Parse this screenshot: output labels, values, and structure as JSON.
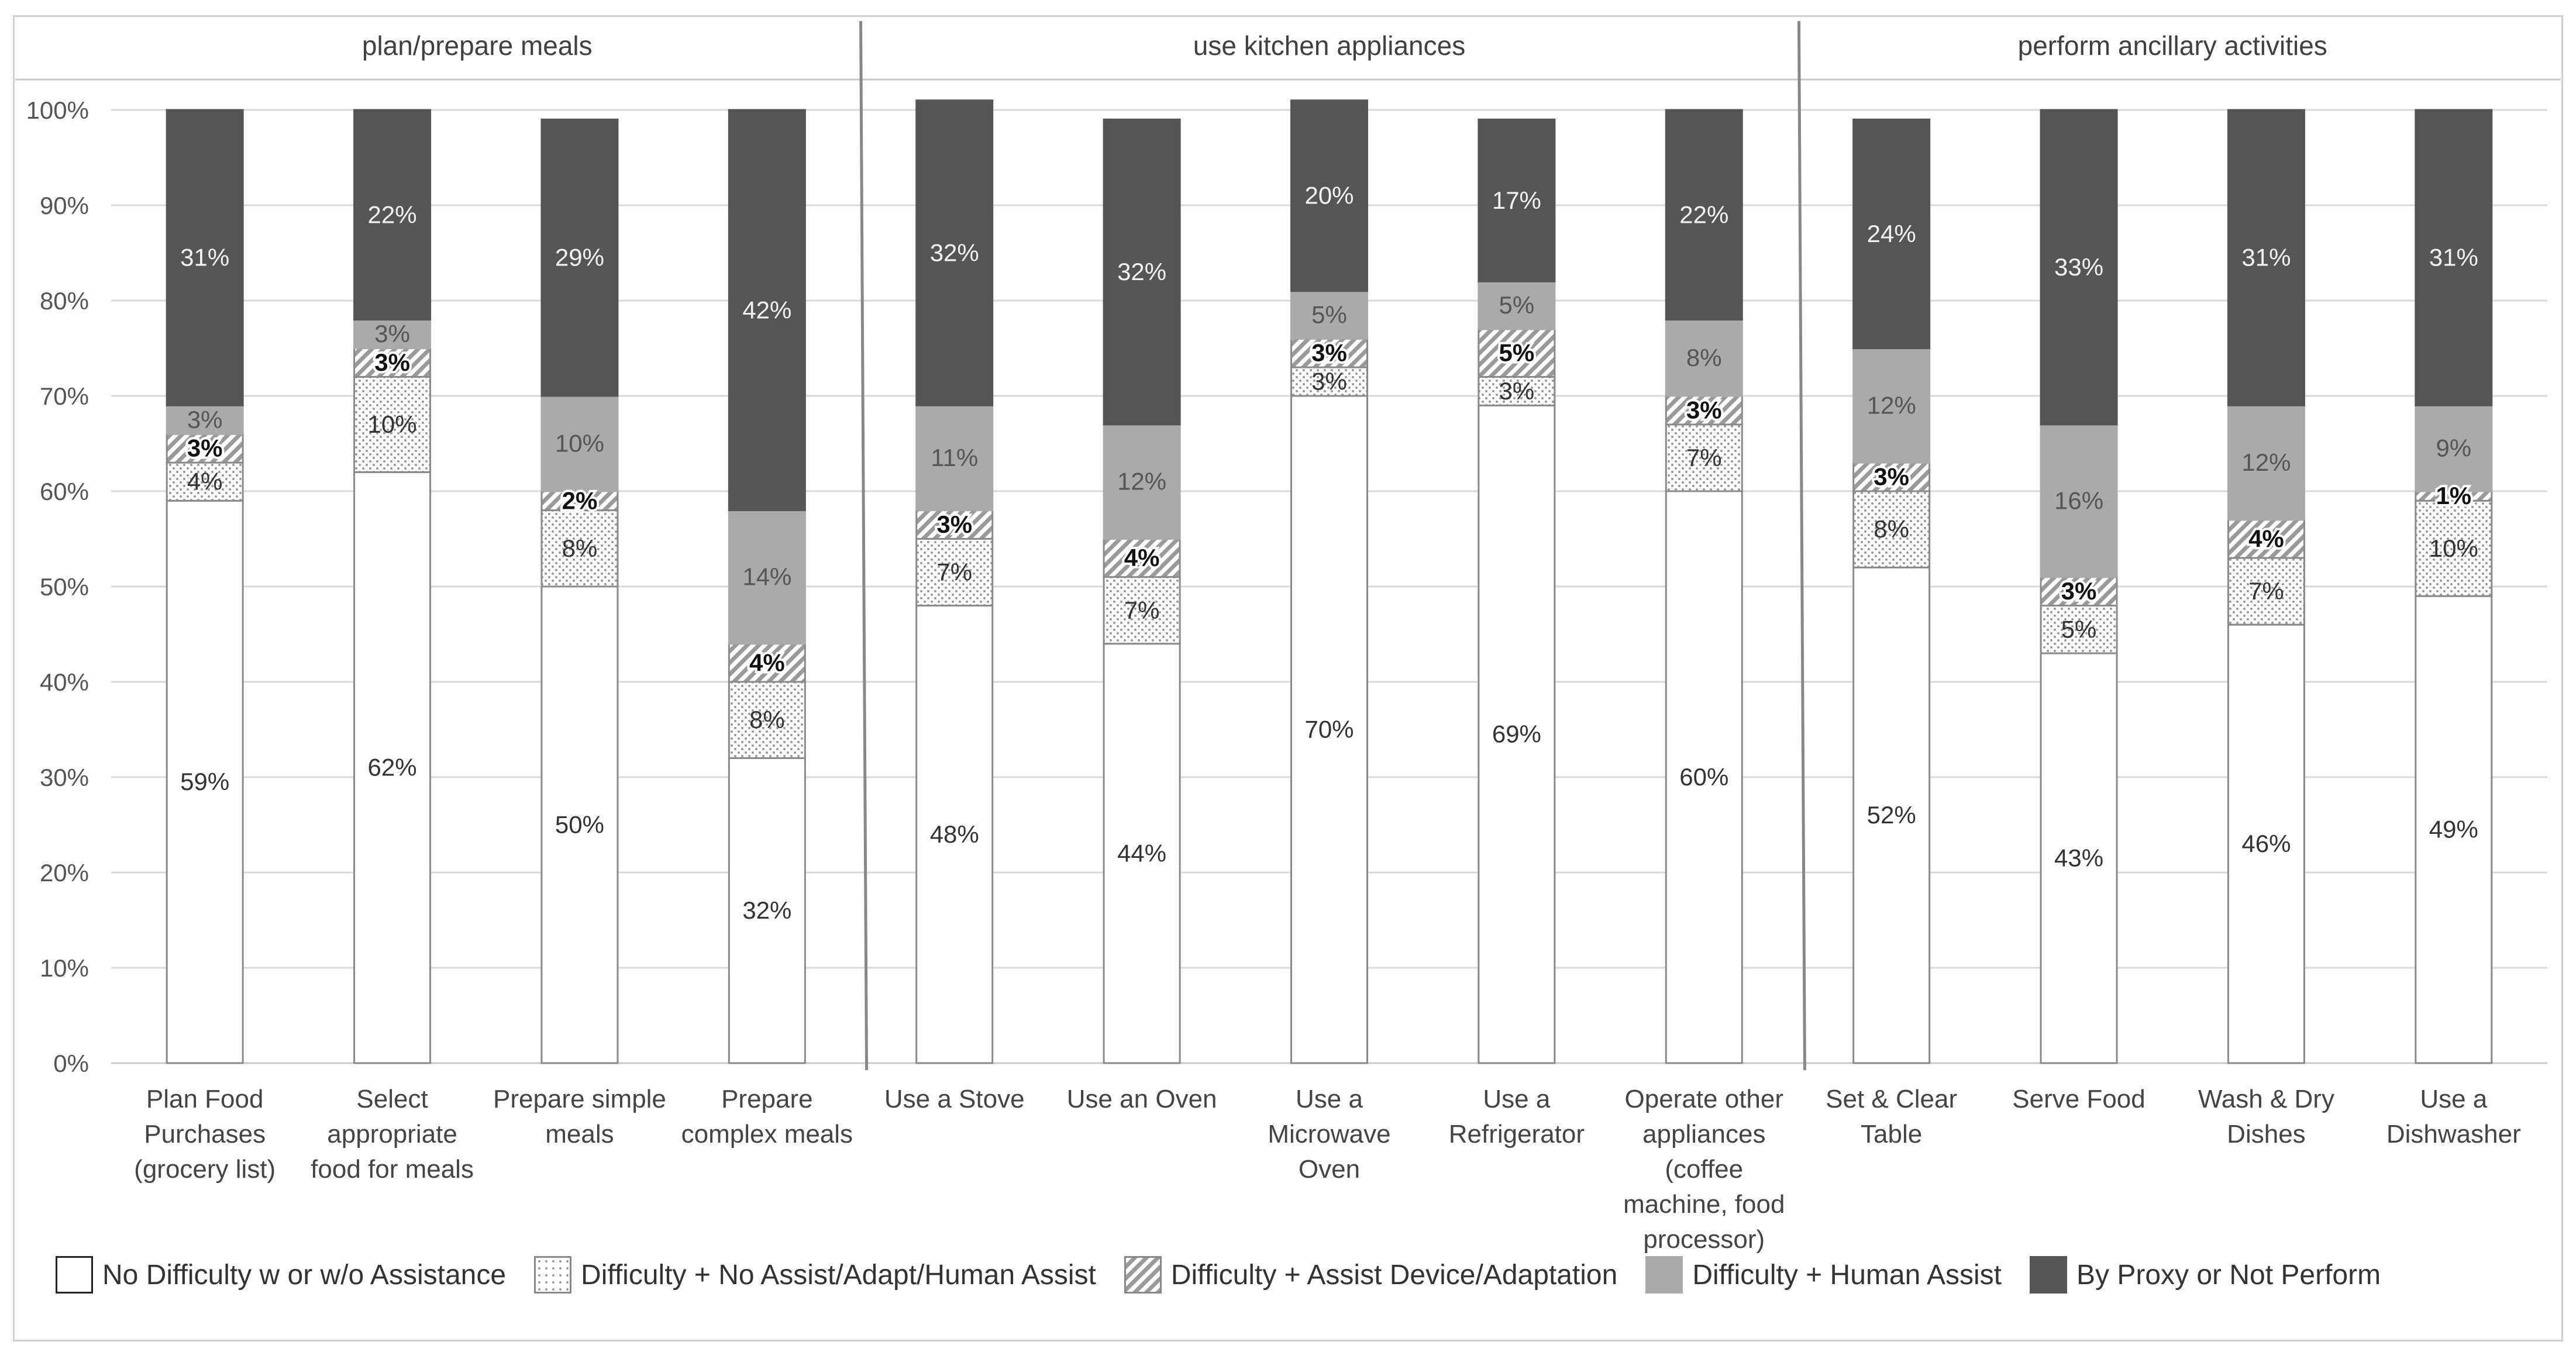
{
  "chart_data": {
    "type": "stacked-bar",
    "yticks": [
      "0%",
      "10%",
      "20%",
      "30%",
      "40%",
      "50%",
      "60%",
      "70%",
      "80%",
      "90%",
      "100%"
    ],
    "ylim": [
      0,
      100
    ],
    "groups": [
      {
        "title": "plan/prepare meals",
        "start": 0,
        "count": 4
      },
      {
        "title": "use kitchen appliances",
        "start": 4,
        "count": 5
      },
      {
        "title": "perform ancillary activities",
        "start": 9,
        "count": 4
      }
    ],
    "categories": [
      [
        "Plan Food",
        "Purchases",
        "(grocery list)"
      ],
      [
        "Select",
        "appropriate",
        "food for meals"
      ],
      [
        "Prepare simple",
        "meals"
      ],
      [
        "Prepare",
        "complex meals"
      ],
      [
        "Use a Stove"
      ],
      [
        "Use an Oven"
      ],
      [
        "Use a",
        "Microwave",
        "Oven"
      ],
      [
        "Use a",
        "Refrigerator"
      ],
      [
        "Operate other",
        "appliances",
        "(coffee",
        "machine, food",
        "processor)"
      ],
      [
        "Set & Clear",
        "Table"
      ],
      [
        "Serve Food"
      ],
      [
        "Wash & Dry",
        "Dishes"
      ],
      [
        "Use a",
        "Dishwasher"
      ]
    ],
    "series": [
      {
        "name": "No Difficulty w or w/o Assistance",
        "key": "none",
        "values": [
          59,
          62,
          50,
          32,
          48,
          44,
          70,
          69,
          60,
          52,
          43,
          46,
          49
        ],
        "labels": [
          "59%",
          "62%",
          "50%",
          "32%",
          "48%",
          "44%",
          "70%",
          "69%",
          "60%",
          "52%",
          "43%",
          "46%",
          "49%"
        ]
      },
      {
        "name": "Difficulty + No Assist/Adapt/Human Assist",
        "key": "dotted",
        "values": [
          4,
          10,
          8,
          8,
          7,
          7,
          3,
          3,
          7,
          8,
          5,
          7,
          10
        ],
        "labels": [
          "4%",
          "10%",
          "8%",
          "8%",
          "7%",
          "7%",
          "3%",
          "3%",
          "7%",
          "8%",
          "5%",
          "7%",
          "10%"
        ]
      },
      {
        "name": "Difficulty + Assist Device/Adaptation",
        "key": "hatch",
        "values": [
          3,
          3,
          2,
          4,
          3,
          4,
          3,
          5,
          3,
          3,
          3,
          4,
          1
        ],
        "labels": [
          "3%",
          "3%",
          "2%",
          "4%",
          "3%",
          "4%",
          "3%",
          "5%",
          "3%",
          "3%",
          "3%",
          "4%",
          "1%"
        ]
      },
      {
        "name": "Difficulty + Human Assist",
        "key": "human",
        "values": [
          3,
          3,
          10,
          14,
          11,
          12,
          5,
          5,
          8,
          12,
          16,
          12,
          9
        ],
        "labels": [
          "3%",
          "3%",
          "10%",
          "14%",
          "11%",
          "12%",
          "5%",
          "5%",
          "8%",
          "12%",
          "16%",
          "12%",
          "9%"
        ]
      },
      {
        "name": "By Proxy or Not Perform",
        "key": "proxy",
        "values": [
          31,
          22,
          29,
          42,
          32,
          32,
          20,
          17,
          22,
          24,
          33,
          31,
          31
        ],
        "labels": [
          "31%",
          "22%",
          "29%",
          "42%",
          "32%",
          "32%",
          "20%",
          "17%",
          "22%",
          "24%",
          "33%",
          "31%",
          "31%"
        ]
      }
    ],
    "colors": {
      "none": "#ffffff",
      "human": "#aaaaaa",
      "proxy": "#555555",
      "dotted_dot": "#999999",
      "hatch_line": "#9a9a9a",
      "border": "#8a8a8a"
    }
  },
  "legend": [
    {
      "key": "none",
      "label": "No Difficulty w or w/o Assistance"
    },
    {
      "key": "dotted",
      "label": "Difficulty + No Assist/Adapt/Human Assist"
    },
    {
      "key": "hatch",
      "label": "Difficulty + Assist Device/Adaptation"
    },
    {
      "key": "human",
      "label": "Difficulty + Human Assist"
    },
    {
      "key": "proxy",
      "label": "By Proxy or Not Perform"
    }
  ]
}
